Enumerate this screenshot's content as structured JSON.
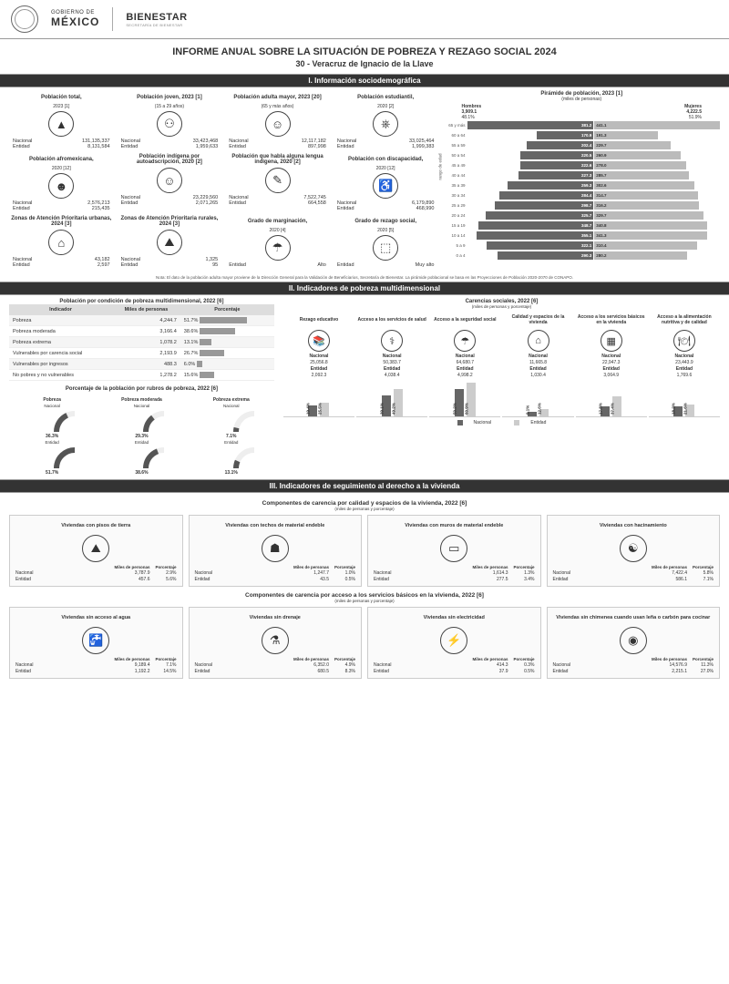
{
  "header": {
    "gov_line1": "GOBIERNO DE",
    "gov_line2": "MÉXICO",
    "brand": "BIENESTAR",
    "brand_sub": "SECRETARÍA DE BIENESTAR"
  },
  "title": "INFORME ANUAL SOBRE LA SITUACIÓN DE POBREZA Y REZAGO SOCIAL 2024",
  "subtitle": "30 - Veracruz de Ignacio de la Llave",
  "bars": {
    "s1": "I. Información sociodemográfica",
    "s2": "II. Indicadores de pobreza multidimensional",
    "s3": "III. Indicadores de seguimiento al derecho a la vivienda"
  },
  "s1_cards": [
    {
      "title": "Población total,",
      "sub": "2023 [1]",
      "icon": "▲",
      "nac": "131,135,337",
      "ent": "8,131,584"
    },
    {
      "title": "Población joven, 2023 [1]",
      "sub": "(15 a 29 años)",
      "icon": "⚇",
      "nac": "33,423,468",
      "ent": "1,959,633"
    },
    {
      "title": "Población adulta mayor, 2023 [20]",
      "sub": "(65 y más años)",
      "icon": "☺",
      "nac": "12,117,182",
      "ent": "897,998"
    },
    {
      "title": "Población estudiantil,",
      "sub": "2020 [2]",
      "icon": "⎈",
      "nac": "33,025,464",
      "ent": "1,999,383"
    },
    {
      "title": "Población afromexicana,",
      "sub": "2020 [12]",
      "icon": "☻",
      "nac": "2,576,213",
      "ent": "215,435"
    },
    {
      "title": "Población indígena por autoadscripción, 2020 [2]",
      "sub": "",
      "icon": "☺",
      "nac": "23,229,560",
      "ent": "2,071,265"
    },
    {
      "title": "Población que habla alguna lengua indígena, 2020 [2]",
      "sub": "",
      "icon": "✎",
      "nac": "7,522,745",
      "ent": "664,558"
    },
    {
      "title": "Población con discapacidad,",
      "sub": "2020 [12]",
      "icon": "♿",
      "nac": "6,179,890",
      "ent": "468,990"
    },
    {
      "title": "Zonas de Atención Prioritaria urbanas, 2024 [3]",
      "sub": "",
      "icon": "⌂",
      "nac": "43,182",
      "ent": "2,597"
    },
    {
      "title": "Zonas de Atención Prioritaria rurales, 2024 [3]",
      "sub": "",
      "icon": "⛰",
      "nac": "1,325",
      "ent": "95"
    },
    {
      "title": "Grado de marginación,",
      "sub": "2020 [4]",
      "icon": "☂",
      "nac": "",
      "ent": "Alto",
      "ent_only": true
    },
    {
      "title": "Grado de rezago social,",
      "sub": "2020 [5]",
      "icon": "⬚",
      "nac": "",
      "ent": "Muy alto",
      "ent_only": true
    }
  ],
  "labels": {
    "nacional": "Nacional",
    "entidad": "Entidad"
  },
  "pyramid": {
    "title": "Pirámide de población, 2023 [1]",
    "sub": "(miles de personas)",
    "hombres_label": "Hombres",
    "hombres_val": "3,909.1",
    "hombres_pct": "48.1%",
    "mujeres_label": "Mujeres",
    "mujeres_val": "4,222.5",
    "mujeres_pct": "51.9%",
    "ylabel": "rango de edad",
    "max": 380,
    "rows": [
      {
        "age": "65 y más",
        "m": 381.2,
        "f": 441.1
      },
      {
        "age": "60 a 64",
        "m": 170.9,
        "f": 191.3
      },
      {
        "age": "55 a 59",
        "m": 202.4,
        "f": 229.7
      },
      {
        "age": "50 a 54",
        "m": 220.5,
        "f": 260.9
      },
      {
        "age": "45 a 49",
        "m": 222.6,
        "f": 278.0
      },
      {
        "age": "40 a 44",
        "m": 227.3,
        "f": 285.7
      },
      {
        "age": "35 a 39",
        "m": 259.3,
        "f": 302.6
      },
      {
        "age": "30 a 34",
        "m": 284.4,
        "f": 314.7
      },
      {
        "age": "25 a 29",
        "m": 298.7,
        "f": 316.2
      },
      {
        "age": "20 a 24",
        "m": 325.7,
        "f": 329.7
      },
      {
        "age": "15 a 19",
        "m": 348.7,
        "f": 340.8
      },
      {
        "age": "10 a 14",
        "m": 355.1,
        "f": 341.3
      },
      {
        "age": "5 a 9",
        "m": 322.1,
        "f": 310.4
      },
      {
        "age": "0 a 4",
        "m": 290.3,
        "f": 280.2
      }
    ]
  },
  "nota": "Nota: El dato de la población adulta mayor proviene de la Dirección General para la Validación de Beneficiarios, Secretaría de Bienestar. La pirámide poblacional se basa en las Proyecciones de Población 2020-2070 de CONAPO.",
  "poverty_table": {
    "title": "Población por condición de pobreza multidimensional, 2022 [6]",
    "cols": [
      "Indicador",
      "Miles de personas",
      "Porcentaje"
    ],
    "rows": [
      {
        "ind": "Pobreza",
        "mp": "4,244.7",
        "pct": 51.7
      },
      {
        "ind": "Pobreza moderada",
        "mp": "3,166.4",
        "pct": 38.6
      },
      {
        "ind": "Pobreza extrema",
        "mp": "1,078.2",
        "pct": 13.1
      },
      {
        "ind": "Vulnerables por carencia social",
        "mp": "2,193.9",
        "pct": 26.7
      },
      {
        "ind": "Vulnerables por ingresos",
        "mp": "488.3",
        "pct": 6.0
      },
      {
        "ind": "No pobres y no vulnerables",
        "mp": "1,278.2",
        "pct": 15.6
      }
    ]
  },
  "gauges_title": "Porcentaje de la población por rubros de pobreza, 2022 [6]",
  "gauges": [
    {
      "name": "Pobreza",
      "nac": 36.3,
      "ent": 51.7
    },
    {
      "name": "Pobreza moderada",
      "nac": 29.3,
      "ent": 38.6
    },
    {
      "name": "Pobreza extrema",
      "nac": 7.1,
      "ent": 13.1
    }
  ],
  "carencias": {
    "title": "Carencias sociales, 2022 [6]",
    "sub": "(miles de personas y porcentaje)",
    "legend_n": "Nacional",
    "legend_e": "Entidad",
    "items": [
      {
        "t": "Rezago educativo",
        "icon": "📚",
        "nac": "25,056.8",
        "ent": "2,092.3",
        "pn": 19.4,
        "pe": 25.5
      },
      {
        "t": "Acceso a los servicios de salud",
        "icon": "⚕",
        "nac": "50,383.7",
        "ent": "4,038.4",
        "pn": 39.1,
        "pe": 49.2
      },
      {
        "t": "Acceso a la seguridad social",
        "icon": "☂",
        "nac": "64,680.7",
        "ent": "4,998.2",
        "pn": 50.2,
        "pe": 60.9
      },
      {
        "t": "Calidad y espacios de la vivienda",
        "icon": "⌂",
        "nac": "11,665.8",
        "ent": "1,030.4",
        "pn": 9.1,
        "pe": 12.6
      },
      {
        "t": "Acceso a los servicios básicos en la vivienda",
        "icon": "▦",
        "nac": "22,947.3",
        "ent": "3,064.9",
        "pn": 17.8,
        "pe": 37.4
      },
      {
        "t": "Acceso a la alimentación nutritiva y de calidad",
        "icon": "🍽",
        "nac": "23,443.9",
        "ent": "1,769.6",
        "pn": 18.2,
        "pe": 21.6
      }
    ]
  },
  "s3_a": {
    "title": "Componentes de carencia por calidad y espacios de la vivienda, 2022 [6]",
    "sub": "(miles de personas y porcentaje)",
    "cards": [
      {
        "t": "Viviendas con pisos de tierra",
        "icon": "⛰",
        "nm": "3,787.9",
        "np": "2.9%",
        "em": "457.6",
        "ep": "5.6%"
      },
      {
        "t": "Viviendas con techos de material endeble",
        "icon": "☗",
        "nm": "1,247.7",
        "np": "1.0%",
        "em": "43.5",
        "ep": "0.5%"
      },
      {
        "t": "Viviendas con muros de material endeble",
        "icon": "▭",
        "nm": "1,614.3",
        "np": "1.3%",
        "em": "277.5",
        "ep": "3.4%"
      },
      {
        "t": "Viviendas con hacinamiento",
        "icon": "☯",
        "nm": "7,422.4",
        "np": "5.8%",
        "em": "586.1",
        "ep": "7.1%"
      }
    ]
  },
  "s3_b": {
    "title": "Componentes de carencia por acceso a los servicios básicos en la vivienda, 2022 [6]",
    "sub": "(miles de personas y porcentaje)",
    "cards": [
      {
        "t": "Viviendas sin acceso al agua",
        "icon": "🚰",
        "nm": "9,189.4",
        "np": "7.1%",
        "em": "1,192.2",
        "ep": "14.5%"
      },
      {
        "t": "Viviendas sin drenaje",
        "icon": "⚗",
        "nm": "6,352.0",
        "np": "4.9%",
        "em": "680.5",
        "ep": "8.3%"
      },
      {
        "t": "Viviendas sin electricidad",
        "icon": "⚡",
        "nm": "414.3",
        "np": "0.3%",
        "em": "37.9",
        "ep": "0.5%"
      },
      {
        "t": "Viviendas sin chimenea cuando usan leña o carbón para cocinar",
        "icon": "◉",
        "nm": "14,576.9",
        "np": "11.3%",
        "em": "2,215.1",
        "ep": "27.0%"
      }
    ]
  },
  "hcols": {
    "c1": "Miles de personas",
    "c2": "Porcentaje"
  },
  "colors": {
    "dark": "#666",
    "light": "#ccc",
    "bar": "#333"
  }
}
